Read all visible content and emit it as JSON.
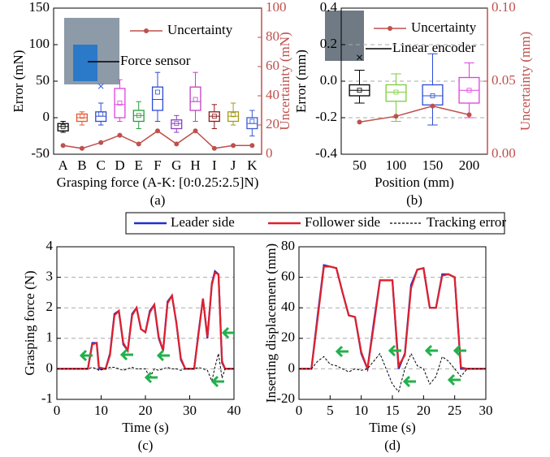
{
  "chart_data": [
    {
      "type": "box",
      "panel": "(a)",
      "xlabel": "Grasping force (A-K: [0:0.25:2.5]N)",
      "ylabel": "Error (mN)",
      "y2label": "Uncertainty (mN)",
      "annotation": "Force sensor",
      "categories": [
        "A",
        "B",
        "C",
        "D",
        "E",
        "F",
        "G",
        "H",
        "I",
        "J",
        "K"
      ],
      "boxes": [
        {
          "color": "#000000",
          "min": -20,
          "q1": -18,
          "median": -12,
          "q3": -8,
          "max": -5,
          "mean": -12
        },
        {
          "color": "#e4572e",
          "min": -10,
          "q1": -5,
          "median": 0,
          "q3": 5,
          "max": 8,
          "mean": 2
        },
        {
          "color": "#2d4bd6",
          "min": -10,
          "q1": -5,
          "median": 2,
          "q3": 8,
          "max": 20,
          "mean": 5,
          "outliers": [
            43
          ]
        },
        {
          "color": "#e040e0",
          "min": -5,
          "q1": 0,
          "median": 18,
          "q3": 40,
          "max": 52,
          "mean": 20
        },
        {
          "color": "#2a9d3a",
          "min": -15,
          "q1": -5,
          "median": 3,
          "q3": 10,
          "max": 22,
          "mean": 3
        },
        {
          "color": "#2d4bd6",
          "min": -5,
          "q1": 10,
          "median": 25,
          "q3": 42,
          "max": 62,
          "mean": 35
        },
        {
          "color": "#8a3fc2",
          "min": -20,
          "q1": -15,
          "median": -8,
          "q3": -3,
          "max": 3,
          "mean": -8
        },
        {
          "color": "#c040c0",
          "min": -5,
          "q1": 10,
          "median": 22,
          "q3": 42,
          "max": 62,
          "mean": 25
        },
        {
          "color": "#8b1a1a",
          "min": -15,
          "q1": -5,
          "median": 2,
          "q3": 8,
          "max": 18,
          "mean": 2
        },
        {
          "color": "#a39a1a",
          "min": -10,
          "q1": -5,
          "median": 2,
          "q3": 8,
          "max": 20,
          "mean": 4
        },
        {
          "color": "#3a5bd6",
          "min": -25,
          "q1": -15,
          "median": -8,
          "q3": 0,
          "max": 10,
          "mean": -5
        }
      ],
      "series": [
        {
          "name": "Uncertainty",
          "color": "#c0504d",
          "axis": "y2",
          "values": [
            6,
            4,
            8,
            13,
            7,
            16,
            7,
            16,
            4,
            6,
            6
          ]
        }
      ],
      "ylim": [
        -50,
        150
      ],
      "yticks": [
        -50,
        0,
        50,
        100,
        150
      ],
      "y2lim": [
        0,
        100
      ],
      "y2ticks": [
        0,
        20,
        40,
        60,
        80,
        100
      ],
      "grid": false
    },
    {
      "type": "box",
      "panel": "(b)",
      "xlabel": "Position (mm)",
      "ylabel": "Error (mm)",
      "y2label": "Uncertainty (mm)",
      "annotation": "Linear encoder",
      "categories": [
        "50",
        "100",
        "150",
        "200"
      ],
      "boxes": [
        {
          "color": "#000000",
          "min": -0.12,
          "q1": -0.08,
          "median": -0.05,
          "q3": -0.02,
          "max": 0.06,
          "mean": -0.05,
          "outliers": [
            0.13
          ]
        },
        {
          "color": "#7ccd3a",
          "min": -0.22,
          "q1": -0.11,
          "median": -0.06,
          "q3": -0.02,
          "max": 0.04,
          "mean": -0.06
        },
        {
          "color": "#2d4bd6",
          "min": -0.24,
          "q1": -0.13,
          "median": -0.08,
          "q3": -0.02,
          "max": 0.15,
          "mean": -0.08
        },
        {
          "color": "#e040e0",
          "min": -0.2,
          "q1": -0.12,
          "median": -0.05,
          "q3": 0.02,
          "max": 0.1,
          "mean": -0.05
        }
      ],
      "series": [
        {
          "name": "Uncertainty",
          "color": "#c0504d",
          "axis": "y2",
          "values": [
            0.022,
            0.026,
            0.033,
            0.027
          ]
        }
      ],
      "ylim": [
        -0.4,
        0.4
      ],
      "yticks": [
        -0.4,
        -0.2,
        {
          "value": 0,
          "label": "0.0"
        },
        0.2,
        0.4
      ],
      "y2lim": [
        0,
        0.1
      ],
      "y2ticks": [
        {
          "value": 0,
          "label": "0.00"
        },
        {
          "value": 0.05,
          "label": "0.05"
        },
        {
          "value": 0.1,
          "label": "0.10"
        }
      ],
      "grid": true
    },
    {
      "type": "line",
      "panel": "(c)",
      "xlabel": "Time (s)",
      "ylabel": "Grasping force (N)",
      "x": [
        0,
        7,
        8,
        9,
        9.5,
        11,
        12,
        13,
        14,
        15,
        16,
        17,
        18,
        19,
        20,
        21,
        22,
        23,
        24,
        25,
        26,
        27,
        28,
        29,
        31,
        32,
        33,
        34,
        35,
        35.7,
        36.5,
        37.3,
        38,
        40
      ],
      "series": [
        {
          "name": "Leader side",
          "color": "#1f2fd0",
          "values": [
            0,
            0,
            0.85,
            0.85,
            0,
            0,
            0.5,
            1.8,
            1.9,
            0.8,
            0.6,
            1.8,
            2.0,
            1.3,
            1.2,
            1.9,
            2.1,
            1.0,
            0.6,
            2.2,
            2.4,
            1.5,
            0.3,
            0,
            0,
            1.2,
            2.3,
            1.0,
            2.8,
            3.2,
            3.1,
            0.2,
            0,
            0
          ]
        },
        {
          "name": "Follower side",
          "color": "#e0202a",
          "values": [
            0,
            0,
            0.8,
            0.85,
            0.05,
            0,
            0.45,
            1.75,
            1.9,
            0.85,
            0.6,
            1.75,
            2.0,
            1.3,
            1.2,
            1.85,
            2.1,
            1.05,
            0.6,
            2.15,
            2.4,
            1.5,
            0.35,
            0,
            0,
            1.15,
            2.3,
            1.05,
            2.75,
            3.15,
            3.1,
            0.25,
            0,
            0
          ]
        },
        {
          "name": "Tracking error",
          "color": "#000000",
          "dash": true,
          "values": [
            0,
            0,
            0.05,
            0,
            -0.05,
            0,
            0.05,
            0.05,
            0,
            -0.05,
            0,
            0.05,
            0,
            0,
            0,
            -0.3,
            0,
            -0.05,
            0,
            0.05,
            0,
            0,
            -0.05,
            0,
            0,
            0.05,
            0,
            -0.05,
            -0.4,
            0.05,
            0.5,
            -0.3,
            0,
            0
          ]
        }
      ],
      "xlim": [
        0,
        40
      ],
      "xticks": [
        0,
        10,
        20,
        30,
        40
      ],
      "ylim": [
        -1,
        4
      ],
      "yticks": [
        -1,
        0,
        1,
        2,
        3,
        4
      ],
      "grid": true
    },
    {
      "type": "line",
      "panel": "(d)",
      "xlabel": "Time (s)",
      "ylabel": "Inserting displacement (mm)",
      "x": [
        0,
        2,
        3,
        4,
        5,
        6,
        7,
        8,
        9,
        10,
        11,
        12,
        13,
        14,
        15,
        16,
        17,
        18,
        19,
        20,
        21,
        22,
        23,
        24,
        25,
        26,
        27,
        28,
        30
      ],
      "series": [
        {
          "color": "#1f2fd0",
          "values": [
            0,
            0,
            35,
            68,
            67,
            66,
            50,
            35,
            34,
            10,
            0,
            30,
            58,
            58,
            58,
            0,
            10,
            55,
            65,
            66,
            40,
            40,
            62,
            62,
            60,
            0,
            0,
            0,
            0
          ]
        },
        {
          "color": "#e0202a",
          "values": [
            0,
            0,
            33,
            67,
            67,
            66,
            50,
            35,
            34,
            11,
            0,
            28,
            58,
            58,
            58,
            2,
            9,
            53,
            65,
            66,
            40,
            40,
            61,
            62,
            60,
            1,
            0,
            0,
            0
          ]
        },
        {
          "color": "#000000",
          "dash": true,
          "values": [
            0,
            0,
            5,
            8,
            3,
            2,
            0,
            -2,
            0,
            -1,
            0,
            5,
            10,
            0,
            -10,
            -15,
            0,
            10,
            2,
            0,
            -10,
            -5,
            8,
            5,
            0,
            -5,
            0,
            0,
            0
          ]
        }
      ],
      "xlim": [
        0,
        30
      ],
      "xticks": [
        0,
        5,
        10,
        15,
        20,
        25,
        30
      ],
      "ylim": [
        -20,
        80
      ],
      "yticks": [
        -20,
        0,
        20,
        40,
        60,
        80
      ],
      "grid": true
    }
  ]
}
